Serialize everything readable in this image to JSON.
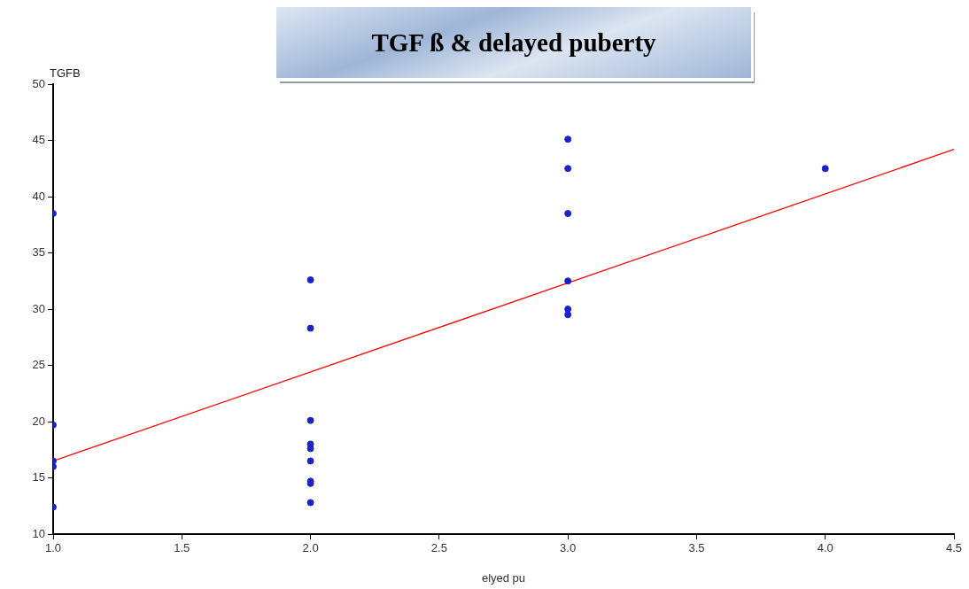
{
  "chart_data": {
    "type": "scatter",
    "title": "TGF ß & delayed puberty",
    "xlabel": "elyed pu",
    "ylabel": "TGFB",
    "xlim": [
      1.0,
      4.5
    ],
    "xticks": [
      {
        "value": 1,
        "label": "1.0"
      },
      1.5,
      {
        "value": 2,
        "label": "2.0"
      },
      2.5,
      {
        "value": 3,
        "label": "3.0"
      },
      3.5,
      {
        "value": 4,
        "label": "4.0"
      },
      4.5
    ],
    "ylim": [
      10,
      50
    ],
    "yticks": [
      10,
      15,
      20,
      25,
      30,
      35,
      40,
      45,
      50
    ],
    "grid": false,
    "marker": "circle",
    "series": [
      {
        "type": "scatter",
        "color": "#1a23c8",
        "x": [
          1,
          1,
          1,
          1,
          1,
          2,
          2,
          2,
          2,
          2,
          2,
          2,
          2,
          2,
          3,
          3,
          3,
          3,
          3,
          3,
          4
        ],
        "values": [
          38.5,
          19.7,
          16.5,
          16.0,
          12.4,
          32.6,
          28.3,
          20.1,
          18.0,
          17.6,
          16.5,
          14.7,
          14.5,
          12.8,
          45.1,
          42.5,
          38.5,
          32.5,
          30.0,
          29.5,
          42.5
        ]
      },
      {
        "type": "line",
        "color": "#ff0000",
        "x": [
          1,
          4.5
        ],
        "values": [
          16.5,
          44.2
        ],
        "marker": "none"
      }
    ]
  }
}
